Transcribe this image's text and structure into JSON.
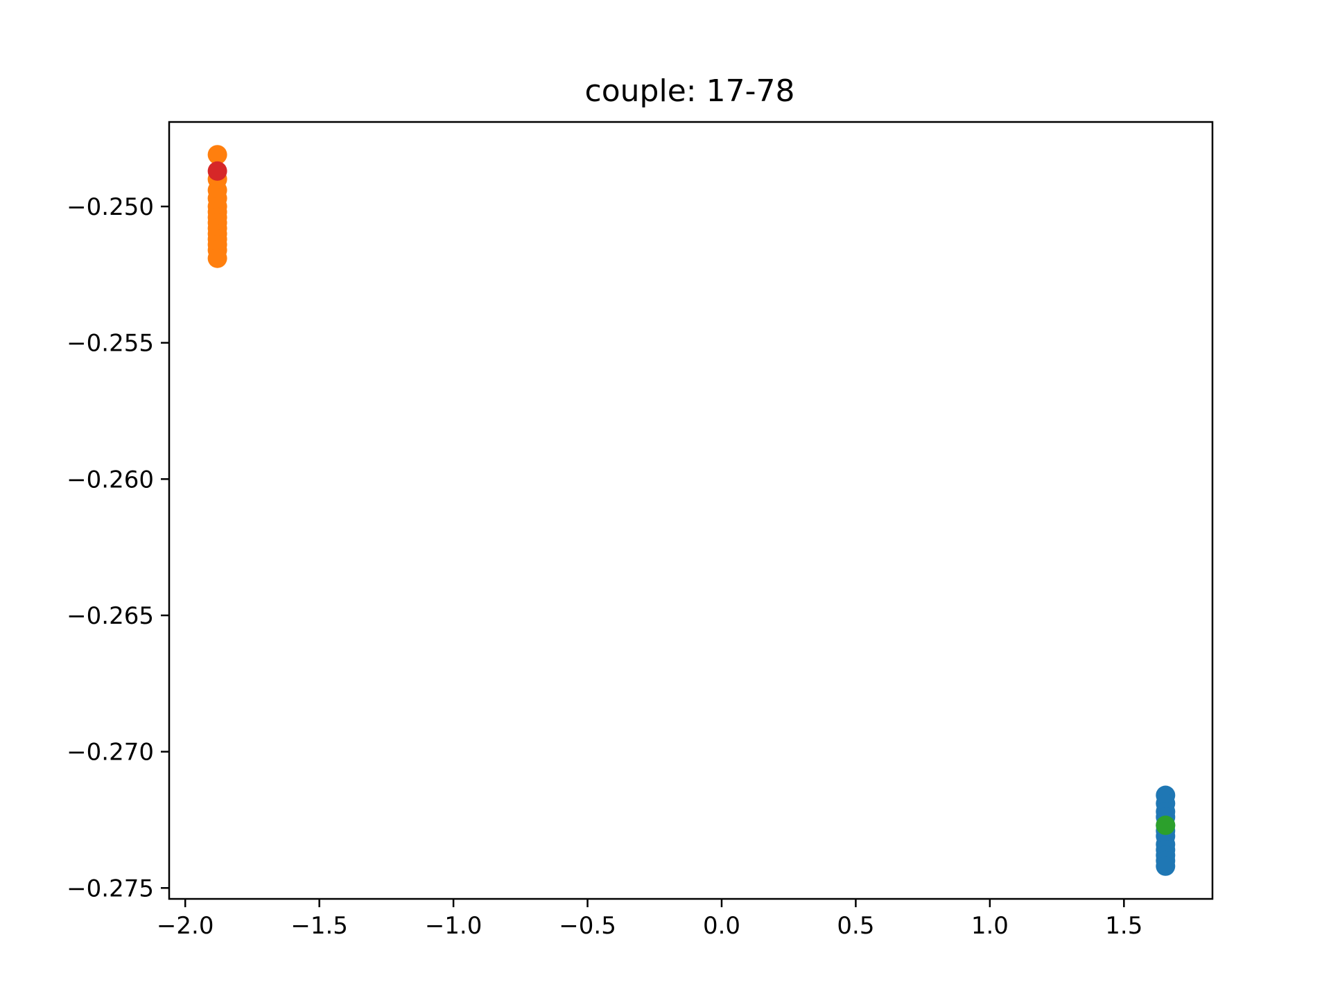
{
  "chart_data": {
    "type": "scatter",
    "title": "couple: 17-78",
    "xlabel": "",
    "ylabel": "",
    "xlim": [
      -2.06,
      1.83
    ],
    "ylim": [
      -0.2754,
      -0.2469
    ],
    "xticks": [
      -2.0,
      -1.5,
      -1.0,
      -0.5,
      0.0,
      0.5,
      1.0,
      1.5
    ],
    "xtick_labels": [
      "−2.0",
      "−1.5",
      "−1.0",
      "−0.5",
      "0.0",
      "0.5",
      "1.0",
      "1.5"
    ],
    "yticks": [
      -0.25,
      -0.255,
      -0.26,
      -0.265,
      -0.27,
      -0.275
    ],
    "ytick_labels": [
      "−0.250",
      "−0.255",
      "−0.260",
      "−0.265",
      "−0.270",
      "−0.275"
    ],
    "grid": false,
    "series": [
      {
        "color": "#ff7f0e",
        "points": [
          [
            -1.88,
            -0.2481
          ],
          [
            -1.88,
            -0.249
          ],
          [
            -1.88,
            -0.2494
          ],
          [
            -1.88,
            -0.2497
          ],
          [
            -1.88,
            -0.25
          ],
          [
            -1.88,
            -0.2502
          ],
          [
            -1.88,
            -0.2504
          ],
          [
            -1.88,
            -0.2506
          ],
          [
            -1.88,
            -0.2508
          ],
          [
            -1.88,
            -0.251
          ],
          [
            -1.88,
            -0.2512
          ],
          [
            -1.88,
            -0.2514
          ],
          [
            -1.88,
            -0.2516
          ],
          [
            -1.88,
            -0.2519
          ]
        ]
      },
      {
        "color": "#1f77b4",
        "points": [
          [
            1.655,
            -0.2716
          ],
          [
            1.655,
            -0.2719
          ],
          [
            1.655,
            -0.2722
          ],
          [
            1.655,
            -0.2724
          ],
          [
            1.655,
            -0.2727
          ],
          [
            1.655,
            -0.2729
          ],
          [
            1.655,
            -0.2731
          ],
          [
            1.655,
            -0.2734
          ],
          [
            1.655,
            -0.2736
          ],
          [
            1.655,
            -0.2738
          ],
          [
            1.655,
            -0.274
          ],
          [
            1.655,
            -0.2742
          ]
        ]
      },
      {
        "color": "#d62728",
        "points": [
          [
            -1.88,
            -0.2487
          ]
        ]
      },
      {
        "color": "#2ca02c",
        "points": [
          [
            1.655,
            -0.2727
          ]
        ]
      }
    ]
  }
}
